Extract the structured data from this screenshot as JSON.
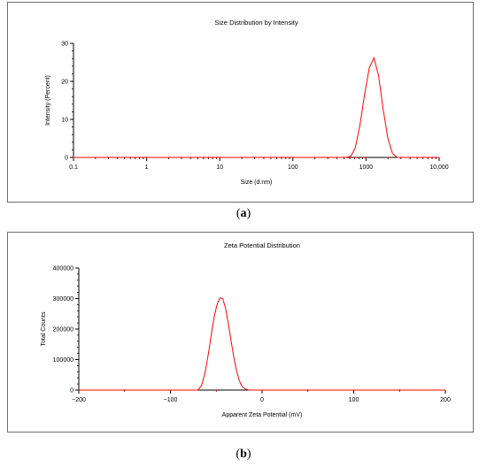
{
  "chart_data": [
    {
      "type": "line",
      "title": "Size Distribution by Intensity",
      "xlabel": "Size (d.nm)",
      "ylabel": "Intensity (Percent)",
      "xscale": "log",
      "xlim": [
        0.1,
        10000
      ],
      "ylim": [
        0,
        30
      ],
      "xticks": [
        0.1,
        1,
        10,
        100,
        1000,
        10000
      ],
      "xtick_labels": [
        "0.1",
        "1",
        "10",
        "100",
        "1000",
        "10,000"
      ],
      "yticks": [
        0,
        10,
        20,
        30
      ],
      "ytick_labels": [
        "0",
        "10",
        "20",
        "30"
      ],
      "line_color": "#ff0000",
      "marker_color": "#ff0000",
      "grid": false,
      "series": [
        {
          "name": "",
          "x": [
            0.1,
            400,
            530,
            620,
            712,
            825,
            955,
            1106,
            1281,
            1484,
            1718,
            1990,
            2305,
            2670,
            10000
          ],
          "y": [
            0,
            0,
            0,
            0.3,
            2.5,
            8.5,
            16.5,
            23.5,
            26.2,
            21.5,
            12.5,
            5.0,
            1.0,
            0,
            0
          ]
        }
      ],
      "caption": "(a)",
      "caption_letter": "a"
    },
    {
      "type": "line",
      "title": "Zeta Potential Distribution",
      "xlabel": "Apparent Zeta Potential (mV)",
      "ylabel": "Total Counts",
      "xlim": [
        -200,
        200
      ],
      "ylim": [
        0,
        400000
      ],
      "xticks": [
        -200,
        -100,
        0,
        100,
        200
      ],
      "xtick_labels": [
        "−200",
        "−100",
        "0",
        "100",
        "200"
      ],
      "yticks": [
        0,
        100000,
        200000,
        300000,
        400000
      ],
      "ytick_labels": [
        "0",
        "100000",
        "200000",
        "300000",
        "400000"
      ],
      "line_color": "#ff0000",
      "marker_color": "#ff0000",
      "grid": false,
      "series": [
        {
          "name": "",
          "x": [
            -200,
            -70,
            -66,
            -62,
            -58,
            -55,
            -52,
            -49,
            -46,
            -43,
            -40,
            -37,
            -34,
            -31,
            -28,
            -25,
            -22,
            -18,
            -14,
            200
          ],
          "y": [
            0,
            0,
            15000,
            60000,
            130000,
            190000,
            245000,
            282000,
            302000,
            300000,
            270000,
            220000,
            165000,
            110000,
            65000,
            32000,
            12000,
            3000,
            0,
            0
          ]
        }
      ],
      "caption": "(b)",
      "caption_letter": "b"
    }
  ]
}
